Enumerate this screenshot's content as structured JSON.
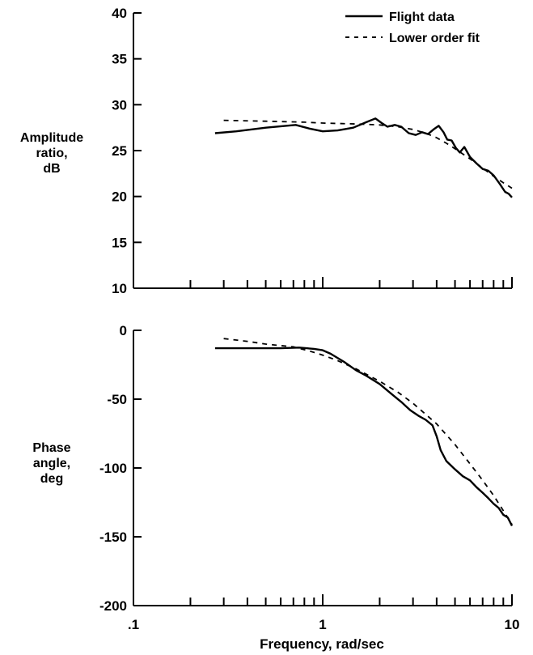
{
  "legend": {
    "entries": [
      {
        "label": "Flight data",
        "style": "solid"
      },
      {
        "label": "Lower order fit",
        "style": "dashed"
      }
    ],
    "placement": "top-right"
  },
  "x_axis": {
    "label": "Frequency, rad/sec",
    "scale": "log",
    "range": [
      0.1,
      10
    ],
    "tick_labels": [
      ".1",
      "1",
      "10"
    ]
  },
  "chart_data": [
    {
      "type": "line",
      "ylabel_lines": [
        "Amplitude",
        "ratio,",
        "dB"
      ],
      "xscale": "log",
      "xlim": [
        0.1,
        10
      ],
      "ylim": [
        10,
        40
      ],
      "yticks": [
        10,
        15,
        20,
        25,
        30,
        35,
        40
      ],
      "ytick_labels": [
        "10",
        "15",
        "20",
        "25",
        "30",
        "35",
        "40"
      ],
      "grid": false,
      "series": [
        {
          "name": "Flight data",
          "style": "solid",
          "x": [
            0.27,
            0.35,
            0.5,
            0.72,
            0.85,
            1.0,
            1.2,
            1.45,
            1.7,
            1.9,
            2.05,
            2.2,
            2.4,
            2.6,
            2.85,
            3.1,
            3.35,
            3.6,
            3.85,
            4.1,
            4.35,
            4.55,
            4.8,
            5.05,
            5.3,
            5.6,
            6.0,
            6.5,
            7.0,
            7.5,
            8.0,
            8.6,
            9.2,
            9.6,
            10.0
          ],
          "y": [
            26.9,
            27.1,
            27.5,
            27.8,
            27.4,
            27.1,
            27.2,
            27.5,
            28.1,
            28.5,
            28.0,
            27.6,
            27.8,
            27.6,
            26.9,
            26.7,
            27.0,
            26.8,
            27.3,
            27.7,
            27.0,
            26.2,
            26.1,
            25.3,
            24.8,
            25.4,
            24.3,
            23.6,
            23.0,
            22.8,
            22.3,
            21.4,
            20.5,
            20.3,
            19.9
          ]
        },
        {
          "name": "Lower order fit",
          "style": "dashed",
          "x": [
            0.3,
            0.5,
            0.8,
            1.0,
            1.5,
            2.0,
            2.5,
            3.0,
            3.5,
            4.0,
            4.5,
            5.0,
            6.0,
            7.0,
            8.0,
            9.0,
            10.0
          ],
          "y": [
            28.3,
            28.2,
            28.1,
            28.0,
            27.9,
            27.8,
            27.6,
            27.3,
            26.9,
            26.4,
            25.8,
            25.2,
            24.1,
            23.1,
            22.2,
            21.5,
            20.9
          ]
        }
      ]
    },
    {
      "type": "line",
      "ylabel_lines": [
        "Phase",
        "angle,",
        "deg"
      ],
      "xscale": "log",
      "xlim": [
        0.1,
        10
      ],
      "ylim": [
        -200,
        0
      ],
      "yticks": [
        -200,
        -150,
        -100,
        -50,
        0
      ],
      "ytick_labels": [
        "-200",
        "-150",
        "-100",
        "-50",
        "0"
      ],
      "grid": false,
      "series": [
        {
          "name": "Flight data",
          "style": "solid",
          "x": [
            0.27,
            0.4,
            0.6,
            0.75,
            0.9,
            1.0,
            1.1,
            1.3,
            1.5,
            1.7,
            2.0,
            2.3,
            2.6,
            2.9,
            3.2,
            3.5,
            3.8,
            4.0,
            4.2,
            4.5,
            5.0,
            5.5,
            6.0,
            6.5,
            7.0,
            7.5,
            8.0,
            8.5,
            9.0,
            9.5,
            10.0
          ],
          "y": [
            -13,
            -13,
            -13,
            -12.5,
            -13.5,
            -14.5,
            -17,
            -23,
            -29,
            -33,
            -39,
            -46,
            -52,
            -58,
            -62,
            -65,
            -69,
            -77,
            -87,
            -95,
            -101,
            -106,
            -109,
            -114,
            -118,
            -122,
            -126,
            -129,
            -134,
            -136,
            -142
          ]
        },
        {
          "name": "Lower order fit",
          "style": "dashed",
          "x": [
            0.3,
            0.4,
            0.5,
            0.7,
            0.85,
            1.0,
            1.2,
            1.5,
            2.0,
            2.5,
            3.0,
            3.5,
            4.0,
            5.0,
            6.0,
            7.0,
            8.0,
            9.0,
            10.0
          ],
          "y": [
            -6,
            -8,
            -10,
            -12,
            -15,
            -18,
            -22,
            -28,
            -37,
            -45,
            -53,
            -61,
            -68,
            -83,
            -97,
            -109,
            -120,
            -131,
            -141
          ]
        }
      ]
    }
  ]
}
